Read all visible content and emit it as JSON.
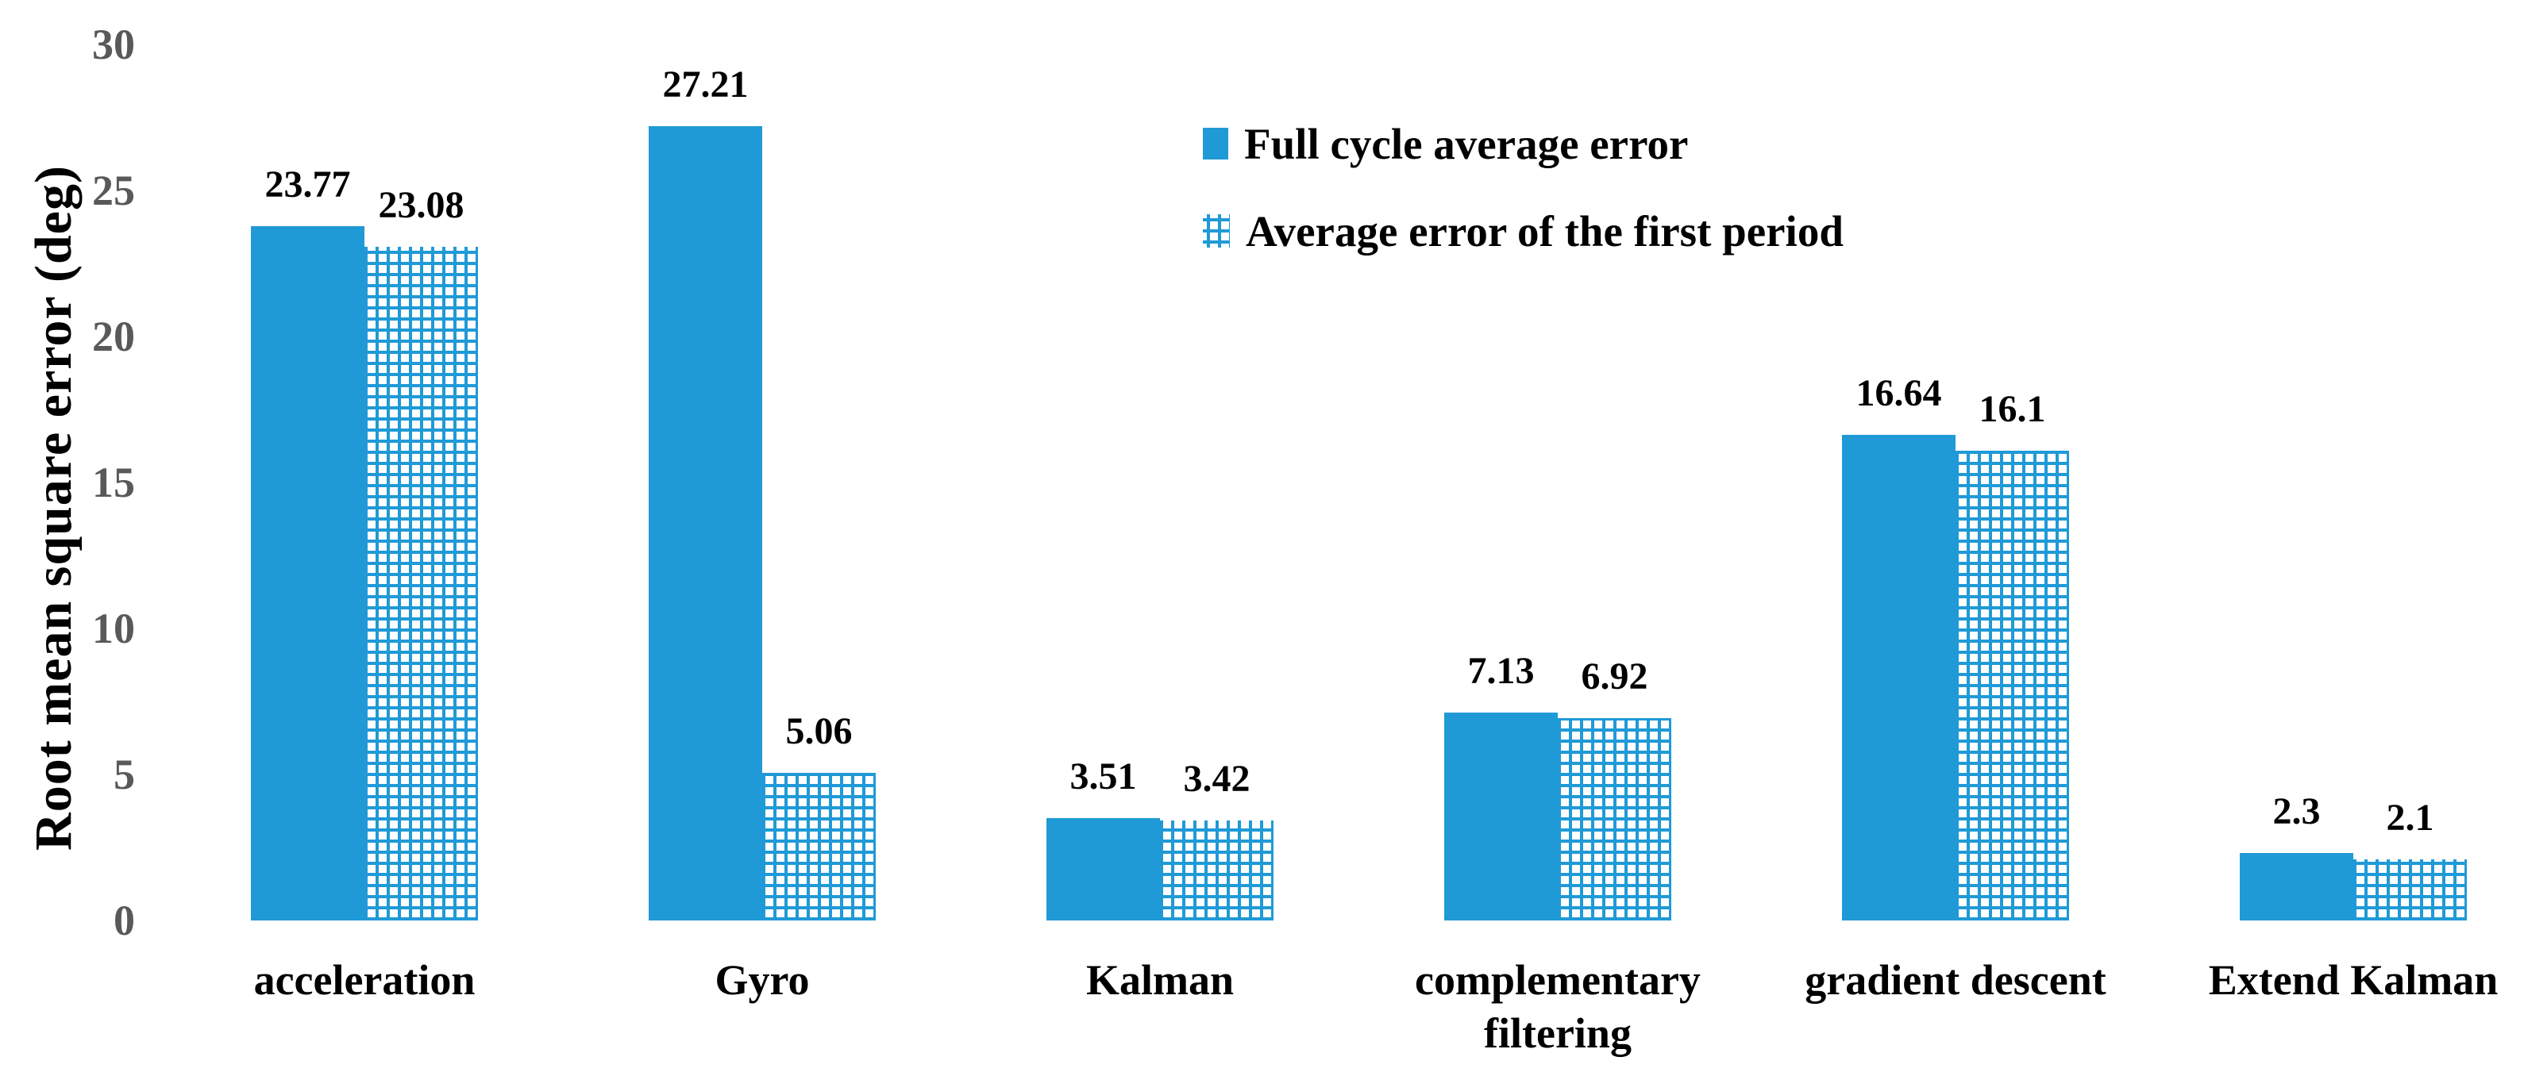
{
  "chart_data": {
    "type": "bar",
    "title": "",
    "xlabel": "",
    "ylabel": "Root mean square error (deg)",
    "ylim": [
      0,
      30
    ],
    "yticks": [
      0,
      5,
      10,
      15,
      20,
      25,
      30
    ],
    "grid": false,
    "axis_lines": false,
    "legend_position": "top-center",
    "categories": [
      "acceleration",
      "Gyro",
      "Kalman",
      "complementary filtering",
      "gradient descent",
      "Extend Kalman"
    ],
    "series": [
      {
        "name": "Full cycle average error",
        "style": "solid",
        "values": [
          23.77,
          27.21,
          3.51,
          7.13,
          16.64,
          2.3
        ],
        "value_labels": [
          "23.77",
          "27.21",
          "3.51",
          "7.13",
          "16.64",
          "2.3"
        ]
      },
      {
        "name": "Average error of the first period",
        "style": "crosshatch",
        "values": [
          23.08,
          5.06,
          3.42,
          6.92,
          16.1,
          2.1
        ],
        "value_labels": [
          "23.08",
          "5.06",
          "3.42",
          "6.92",
          "16.1",
          "2.1"
        ]
      }
    ],
    "colors": {
      "bar_blue": "#1F9AD7",
      "tick_gray": "#595959",
      "text_black": "#000000"
    }
  }
}
